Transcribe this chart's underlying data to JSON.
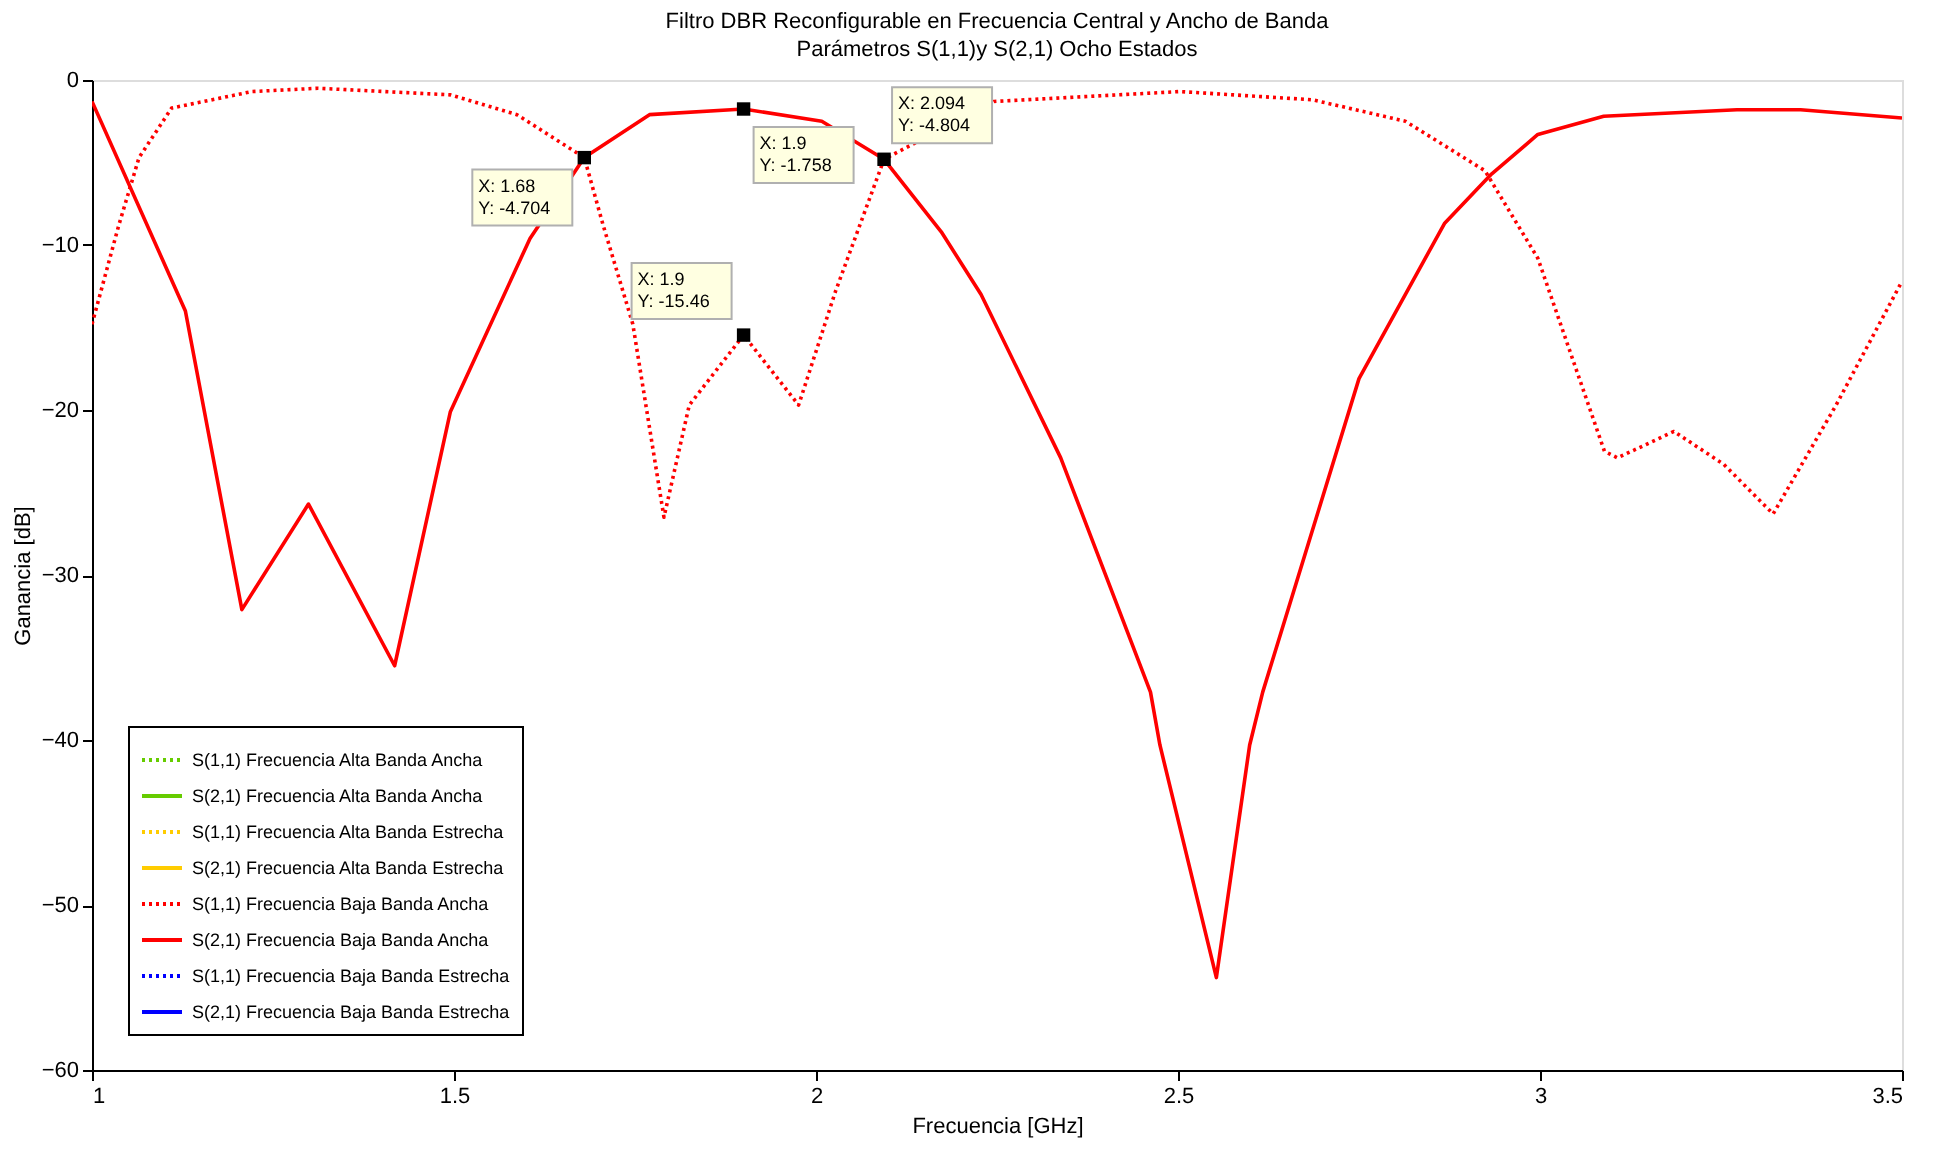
{
  "chart_data": {
    "type": "line",
    "title": "Filtro DBR Reconfigurable en Frecuencia Central y Ancho de Banda",
    "subtitle": "Parámetros S(1,1)y S(2,1) Ocho Estados",
    "xlabel": "Frecuencia [GHz]",
    "ylabel": "Ganancia [dB]",
    "xlim": [
      1,
      3.5
    ],
    "ylim": [
      -60,
      0
    ],
    "xticks": [
      1,
      1.5,
      2,
      2.5,
      3,
      3.5
    ],
    "yticks": [
      -60,
      -50,
      -40,
      -30,
      -20,
      -10,
      0
    ],
    "grid": false,
    "legend": "bottom left",
    "marker": "none",
    "series": [
      {
        "name": "S(1,1) Frecuencia Alta Banda Ancha",
        "color": "#66cc00",
        "line_style": "dotted"
      },
      {
        "name": "S(2,1) Frecuencia Alta Banda Ancha",
        "color": "#66cc00",
        "line_style": "solid"
      },
      {
        "name": "S(1,1) Frecuencia Alta Banda Estrecha",
        "color": "#ffcc00",
        "line_style": "dotted"
      },
      {
        "name": "S(2,1) Frecuencia Alta Banda Estrecha",
        "color": "#ffcc00",
        "line_style": "solid"
      },
      {
        "name": "S(1,1) Frecuencia Baja Banda Ancha",
        "color": "#ff0000",
        "line_style": "dotted",
        "x": [
          1,
          1.037,
          1.065,
          1.11,
          1.221,
          1.312,
          1.495,
          1.587,
          1.68,
          1.706,
          1.747,
          1.79,
          1.825,
          1.9,
          1.976,
          2.027,
          2.094,
          2.246,
          2.503,
          2.686,
          2.814,
          2.924,
          2.997,
          3.089,
          3.107,
          3.185,
          3.254,
          3.322,
          3.409,
          3.5
        ],
        "values": [
          -14.8,
          -8.8,
          -4.7,
          -1.7,
          -0.7,
          -0.5,
          -0.9,
          -2.1,
          -4.704,
          -8.8,
          -14.8,
          -26.5,
          -19.7,
          -15.46,
          -19.7,
          -12.8,
          -4.804,
          -1.3,
          -0.7,
          -1.2,
          -2.5,
          -5.5,
          -10.8,
          -22.5,
          -22.9,
          -21.3,
          -23.3,
          -26.3,
          -19.7,
          -12.2
        ]
      },
      {
        "name": "S(2,1) Frecuencia Baja Banda Ancha",
        "color": "#ff0000",
        "line_style": "solid",
        "x": [
          1,
          1.129,
          1.207,
          1.299,
          1.418,
          1.495,
          1.605,
          1.68,
          1.77,
          1.9,
          2.008,
          2.094,
          2.173,
          2.228,
          2.338,
          2.462,
          2.475,
          2.553,
          2.599,
          2.617,
          2.75,
          2.868,
          2.933,
          2.997,
          3.088,
          3.272,
          3.36,
          3.5
        ],
        "values": [
          -1.3,
          -14.0,
          -32.1,
          -25.7,
          -35.5,
          -20.1,
          -9.6,
          -4.704,
          -2.1,
          -1.758,
          -2.5,
          -4.804,
          -9.2,
          -13.0,
          -22.9,
          -37.1,
          -40.3,
          -54.4,
          -40.3,
          -37.1,
          -18.1,
          -8.7,
          -5.7,
          -3.3,
          -2.2,
          -1.8,
          -1.8,
          -2.3
        ]
      },
      {
        "name": "S(1,1) Frecuencia Baja Banda Estrecha",
        "color": "#0000ff",
        "line_style": "dotted"
      },
      {
        "name": "S(2,1) Frecuencia Baja Banda Estrecha",
        "color": "#0000ff",
        "line_style": "solid"
      }
    ],
    "annotations": [
      {
        "text": "X: 1.68\nY: -4.704",
        "x": 1.68,
        "y": -4.704
      },
      {
        "text": "X: 1.9\nY: -1.758",
        "x": 1.9,
        "y": -1.758
      },
      {
        "text": "X: 1.9\nY: -15.46",
        "x": 1.9,
        "y": -15.46
      },
      {
        "text": "X: 2.094\nY: -4.804",
        "x": 2.094,
        "y": -4.804
      }
    ]
  }
}
